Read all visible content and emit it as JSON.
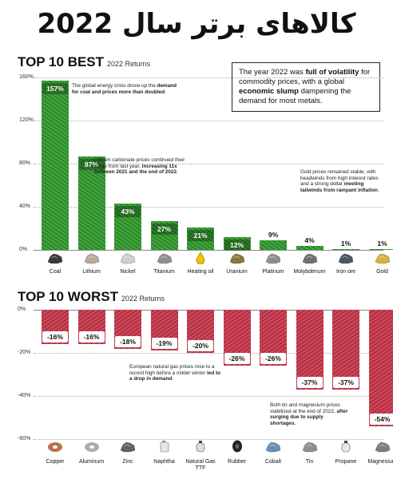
{
  "title": "کالاهای برتر سال 2022",
  "callout": {
    "pre": "The year 2022 was ",
    "b1": "full of volatility",
    "mid1": " for commodity prices, with a global ",
    "b2": "economic slump",
    "post": " dampening the demand for most metals."
  },
  "colors": {
    "best": "#2f9a2c",
    "worst": "#c9364a"
  },
  "chart_data": [
    {
      "type": "bar",
      "title": "TOP 10 BEST",
      "subtitle": "2022 Returns",
      "categories": [
        "Coal",
        "Lithium",
        "Nickel",
        "Titanium",
        "Heating oil",
        "Uranium",
        "Platinum",
        "Molybdenum",
        "Iron ore",
        "Gold"
      ],
      "values": [
        157,
        87,
        43,
        27,
        21,
        12,
        9,
        4,
        1,
        1
      ],
      "value_labels": [
        "157%",
        "87%",
        "43%",
        "27%",
        "21%",
        "12%",
        "9%",
        "4%",
        "1%",
        "1%"
      ],
      "icons": [
        "coal-icon",
        "lithium-icon",
        "nickel-icon",
        "titanium-icon",
        "heating-oil-icon",
        "uranium-icon",
        "platinum-icon",
        "molybdenum-icon",
        "iron-ore-icon",
        "gold-icon"
      ],
      "ylim": [
        0,
        160
      ],
      "yticks": [
        "160%",
        "120%",
        "80%",
        "40%",
        "0%"
      ],
      "notes": [
        {
          "pre": "The global energy crisis drove up the ",
          "b": "demand for coal and prices more than doubled",
          "post": "."
        },
        {
          "pre": "Lithium carbonate prices continued their surge from last year, ",
          "b": "increasing 11x between 2021 and the end of 2022",
          "post": "."
        },
        {
          "pre": "Gold prices remained stable, with headwinds from high interest rates and a strong dollar ",
          "b": "meeting tailwinds from rampant inflation",
          "post": "."
        }
      ]
    },
    {
      "type": "bar",
      "title": "TOP 10 WORST",
      "subtitle": "2022 Returns",
      "categories": [
        "Copper",
        "Aluminum",
        "Zinc",
        "Naphtha",
        "Natural Gas TTF",
        "Rubber",
        "Cobalt",
        "Tin",
        "Propane",
        "Magnesium"
      ],
      "values": [
        -16,
        -16,
        -18,
        -19,
        -20,
        -26,
        -26,
        -37,
        -37,
        -54
      ],
      "value_labels": [
        "-16%",
        "-16%",
        "-18%",
        "-19%",
        "-20%",
        "-26%",
        "-26%",
        "-37%",
        "-37%",
        "-54%"
      ],
      "icons": [
        "copper-icon",
        "aluminum-icon",
        "zinc-icon",
        "naphtha-icon",
        "natural-gas-icon",
        "rubber-icon",
        "cobalt-icon",
        "tin-icon",
        "propane-icon",
        "magnesium-icon"
      ],
      "ylim": [
        -60,
        0
      ],
      "yticks": [
        "0%",
        "-20%",
        "-40%",
        "-60%"
      ],
      "notes": [
        {
          "pre": "European natural gas prices rose to a record high before a milder winter ",
          "b": "led to a drop in demand",
          "post": "."
        },
        {
          "pre": "Both tin and magnesium prices stabilized at the end of 2022, ",
          "b": "after surging due to supply shortages",
          "post": "."
        }
      ]
    }
  ]
}
